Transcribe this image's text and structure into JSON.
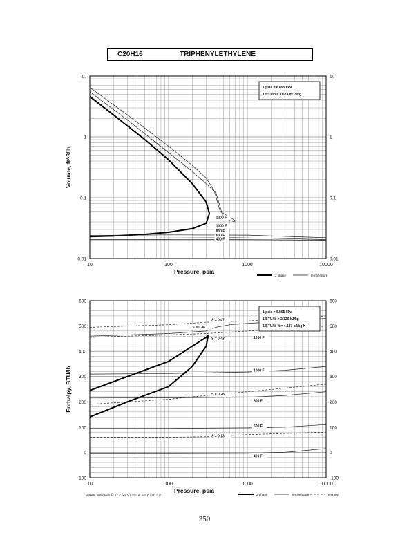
{
  "header": {
    "formula": "C20H16",
    "name": "TRIPHENYLETHYLENE"
  },
  "page_number": "350",
  "chart_data": [
    {
      "type": "line",
      "xscale": "log",
      "yscale": "log",
      "xlabel": "Pressure,  psia",
      "ylabel": "Volume, ft^3/lb",
      "xlim": [
        10,
        10000
      ],
      "ylim": [
        0.01,
        10
      ],
      "x_ticks": [
        "10",
        "100",
        "1000",
        "10000"
      ],
      "y_ticks": [
        "0.01",
        "0.1",
        "1",
        "10"
      ],
      "grid": true,
      "conversion_box": [
        "1 psia  =  6.895 kPa",
        "1 ft^3/lb  =  .0624 m^3/kg"
      ],
      "legend": [
        "2 phase",
        "temperature"
      ],
      "series": [
        {
          "kind": "2 phase",
          "x": [
            10,
            20,
            50,
            100,
            200,
            300,
            330,
            300,
            200,
            100,
            50,
            20,
            10
          ],
          "y": [
            4.6,
            2.3,
            0.9,
            0.42,
            0.17,
            0.085,
            0.055,
            0.038,
            0.031,
            0.027,
            0.025,
            0.0235,
            0.023
          ]
        },
        {
          "kind": "temperature",
          "x": [
            10,
            30,
            100,
            200,
            300,
            400,
            500,
            700
          ],
          "y": [
            5.5,
            1.9,
            0.55,
            0.27,
            0.17,
            0.12,
            0.045,
            0.04
          ]
        },
        {
          "kind": "temperature",
          "x": [
            10,
            30,
            100,
            200,
            300,
            380,
            450,
            700
          ],
          "y": [
            6.5,
            2.3,
            0.7,
            0.34,
            0.21,
            0.13,
            0.06,
            0.042
          ]
        },
        {
          "kind": "temperature",
          "x": [
            10,
            100,
            1000,
            10000
          ],
          "y": [
            0.024,
            0.0245,
            0.0243,
            0.022
          ]
        },
        {
          "kind": "temperature",
          "x": [
            10,
            100,
            700,
            2000,
            10000
          ],
          "y": [
            0.0215,
            0.0218,
            0.022,
            0.0215,
            0.0205
          ]
        },
        {
          "kind": "temperature",
          "x": [
            10,
            100,
            700,
            10000
          ],
          "y": [
            0.0205,
            0.0206,
            0.0205,
            0.02
          ]
        }
      ],
      "annotations": [
        {
          "text": "1200 F",
          "x": 400,
          "y": 0.045
        },
        {
          "text": "1000 F",
          "x": 400,
          "y": 0.033
        },
        {
          "text": "800 F",
          "x": 400,
          "y": 0.027
        },
        {
          "text": "600 F",
          "x": 400,
          "y": 0.023
        },
        {
          "text": "400 F",
          "x": 400,
          "y": 0.02
        }
      ]
    },
    {
      "type": "line",
      "xscale": "log",
      "yscale": "linear",
      "xlabel": "Pressure,  psia",
      "ylabel": "Enthalpy, BTU/lb",
      "xlim": [
        10,
        10000
      ],
      "ylim": [
        -100,
        600
      ],
      "x_ticks": [
        "10",
        "100",
        "1000",
        "10000"
      ],
      "y_ticks": [
        "-100",
        "0",
        "100",
        "200",
        "300",
        "400",
        "500",
        "600"
      ],
      "grid": true,
      "conversion_box": [
        "1 psia  =  6.895 kPa",
        "1 BTU/lb  =  2.326 kJ/kg",
        "1 BTU/lb ft  =  4.187 kJ/kg K"
      ],
      "legend": [
        "2 phase",
        "temperature",
        "entropy"
      ],
      "footnote": "Datum: Ideal Gas @ 77 F (25 C),  H = 0,  S = R ln P = 0",
      "series": [
        {
          "kind": "2 phase",
          "x": [
            10,
            30,
            100,
            200,
            300,
            320
          ],
          "y": [
            245,
            300,
            360,
            420,
            455,
            465
          ]
        },
        {
          "kind": "2 phase",
          "x": [
            10,
            30,
            100,
            200,
            300,
            320
          ],
          "y": [
            140,
            200,
            260,
            340,
            420,
            465
          ]
        },
        {
          "kind": "temperature",
          "x": [
            10,
            100,
            300,
            400,
            600,
            1000,
            10000
          ],
          "y": [
            460,
            470,
            480,
            495,
            505,
            510,
            530
          ]
        },
        {
          "kind": "temperature",
          "x": [
            10,
            100,
            1000,
            3000,
            10000
          ],
          "y": [
            310,
            312,
            318,
            325,
            340
          ]
        },
        {
          "kind": "temperature",
          "x": [
            10,
            100,
            1000,
            3000,
            10000
          ],
          "y": [
            215,
            216,
            218,
            225,
            240
          ]
        },
        {
          "kind": "temperature",
          "x": [
            10,
            100,
            1000,
            3000,
            10000
          ],
          "y": [
            95,
            95,
            97,
            100,
            110
          ]
        },
        {
          "kind": "temperature",
          "x": [
            10,
            100,
            1000,
            3000,
            10000
          ],
          "y": [
            -5,
            -5,
            -4,
            0,
            15
          ]
        },
        {
          "kind": "entropy",
          "x": [
            10,
            100,
            300,
            1000,
            10000
          ],
          "y": [
            495,
            505,
            515,
            520,
            540
          ]
        },
        {
          "kind": "entropy",
          "x": [
            10,
            100,
            300,
            1000,
            10000
          ],
          "y": [
            455,
            465,
            470,
            480,
            500
          ]
        },
        {
          "kind": "entropy",
          "x": [
            10,
            100,
            300,
            1000,
            10000
          ],
          "y": [
            190,
            210,
            225,
            240,
            270
          ]
        },
        {
          "kind": "entropy",
          "x": [
            10,
            100,
            300,
            1000,
            10000
          ],
          "y": [
            60,
            60,
            62,
            70,
            80
          ]
        }
      ],
      "annotations": [
        {
          "text": "S = 0.47",
          "x": 350,
          "y": 520
        },
        {
          "text": "S = 0.46",
          "x": 200,
          "y": 490
        },
        {
          "text": "S = 0.43",
          "x": 350,
          "y": 445
        },
        {
          "text": "1200 F",
          "x": 1200,
          "y": 450
        },
        {
          "text": "1000 F",
          "x": 1200,
          "y": 320
        },
        {
          "text": "S = 0.28",
          "x": 350,
          "y": 225
        },
        {
          "text": "800 F",
          "x": 1200,
          "y": 200
        },
        {
          "text": "600 F",
          "x": 1200,
          "y": 100
        },
        {
          "text": "S = 0.13",
          "x": 350,
          "y": 60
        },
        {
          "text": "400 F",
          "x": 1200,
          "y": -20
        }
      ]
    }
  ]
}
